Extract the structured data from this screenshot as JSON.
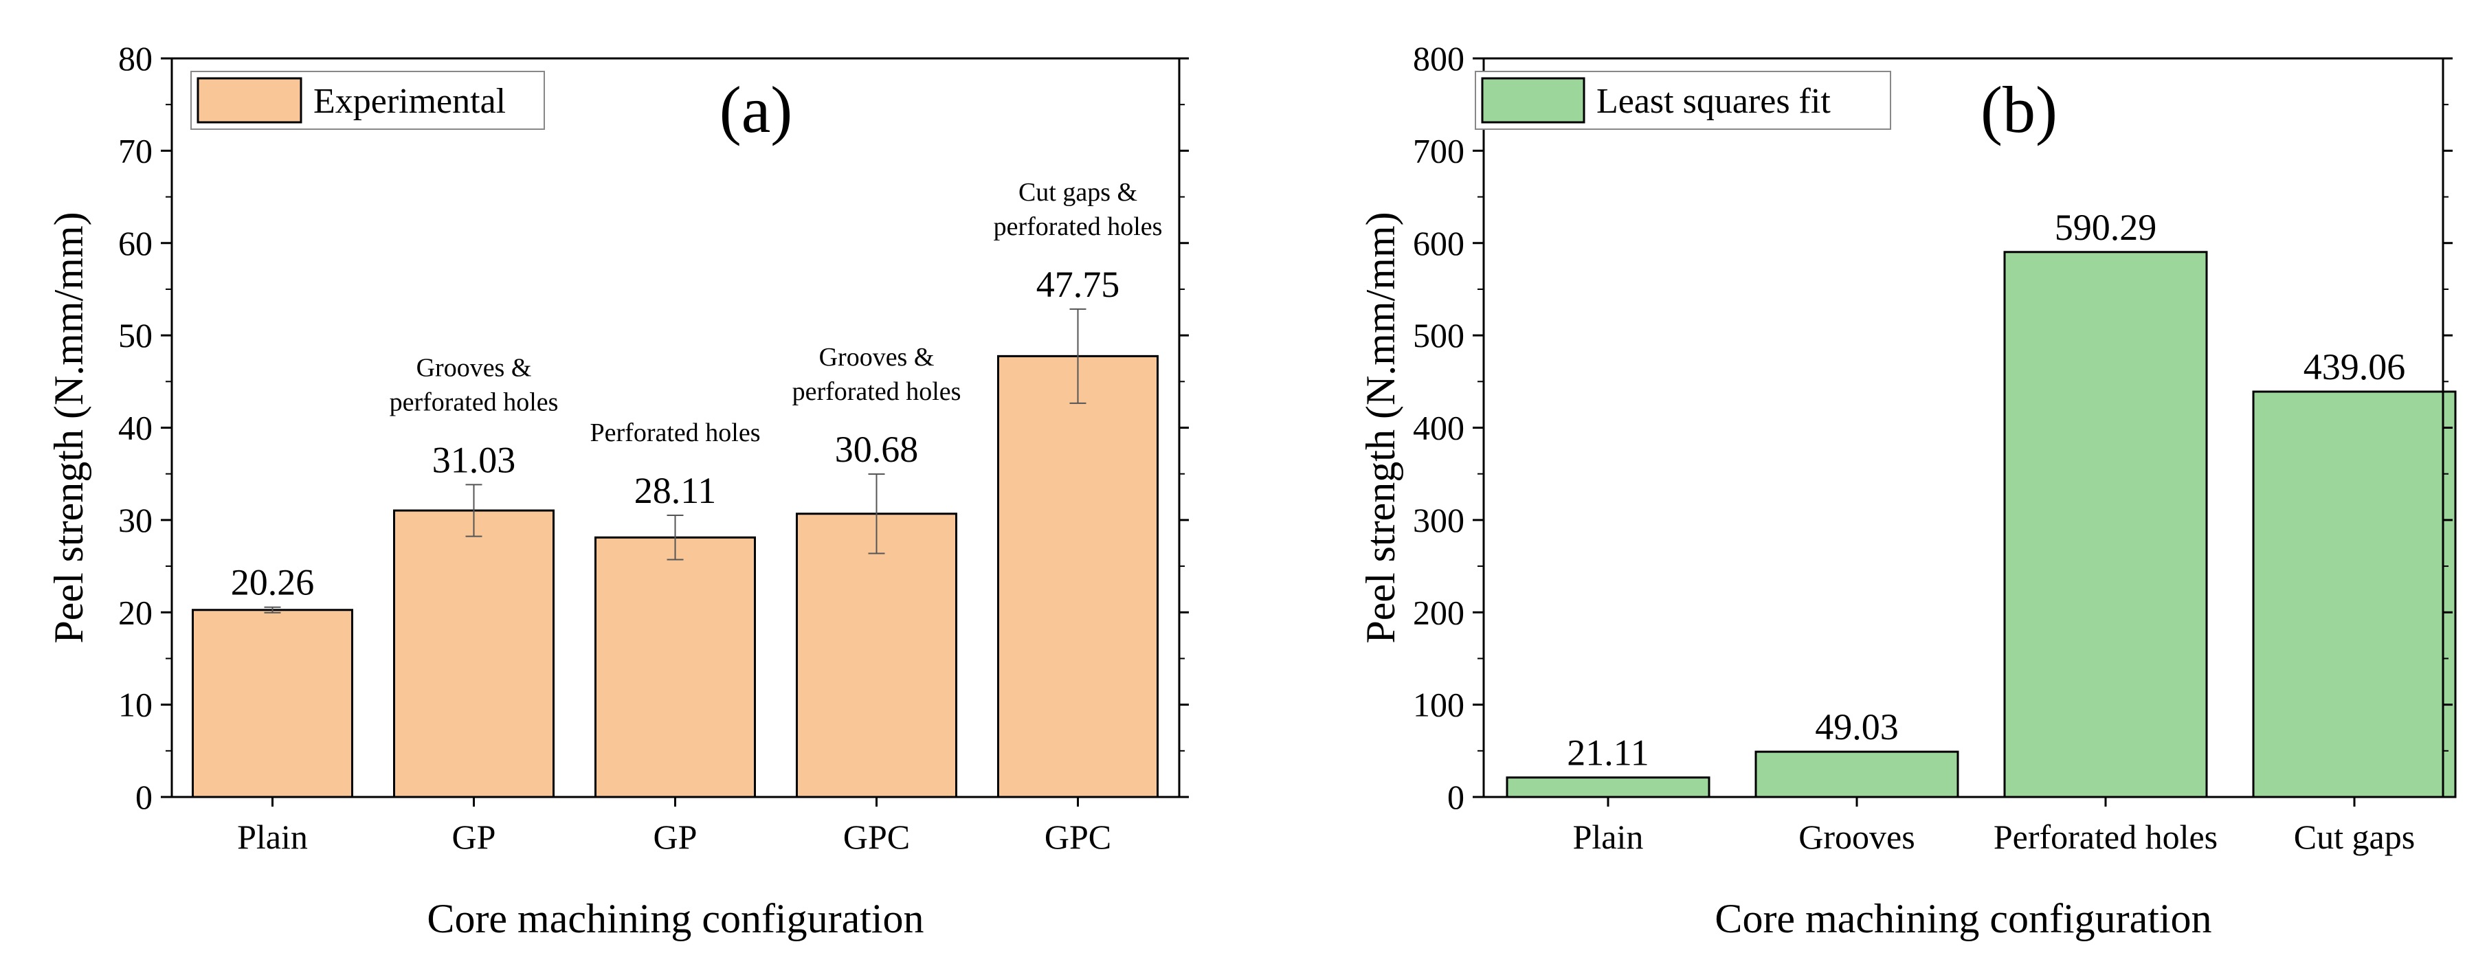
{
  "chart_data": [
    {
      "type": "bar",
      "panel_label": "(a)",
      "xlabel": "Core machining configuration",
      "ylabel": "Peel strength (N.mm/mm)",
      "ylim": [
        0,
        80
      ],
      "yticks": [
        0,
        10,
        20,
        30,
        40,
        50,
        60,
        70,
        80
      ],
      "categories": [
        "Plain",
        "GP",
        "GP",
        "GPC",
        "GPC"
      ],
      "values": [
        20.26,
        31.03,
        28.11,
        30.68,
        47.75
      ],
      "value_labels": [
        "20.26",
        "31.03",
        "28.11",
        "30.68",
        "47.75"
      ],
      "errors": [
        0.3,
        2.8,
        2.4,
        4.3,
        5.1
      ],
      "annotations": [
        [],
        [
          "Grooves &",
          "perforated holes"
        ],
        [
          "Perforated holes"
        ],
        [
          "Grooves &",
          "perforated holes"
        ],
        [
          "Cut gaps &",
          "perforated holes"
        ]
      ],
      "legend": {
        "label": "Experimental",
        "position": "top-left"
      },
      "bar_color": "#f9c797",
      "grid": false
    },
    {
      "type": "bar",
      "panel_label": "(b)",
      "xlabel": "Core machining configuration",
      "ylabel": "Peel strength (N.mm/mm)",
      "ylim": [
        0,
        800
      ],
      "yticks": [
        0,
        100,
        200,
        300,
        400,
        500,
        600,
        700,
        800
      ],
      "categories": [
        "Plain",
        "Grooves",
        "Perforated holes",
        "Cut gaps"
      ],
      "values": [
        21.11,
        49.03,
        590.29,
        439.06
      ],
      "value_labels": [
        "21.11",
        "49.03",
        "590.29",
        "439.06"
      ],
      "legend": {
        "label": "Least squares fit",
        "position": "top-left"
      },
      "bar_color": "#9dd69b",
      "grid": false
    }
  ]
}
